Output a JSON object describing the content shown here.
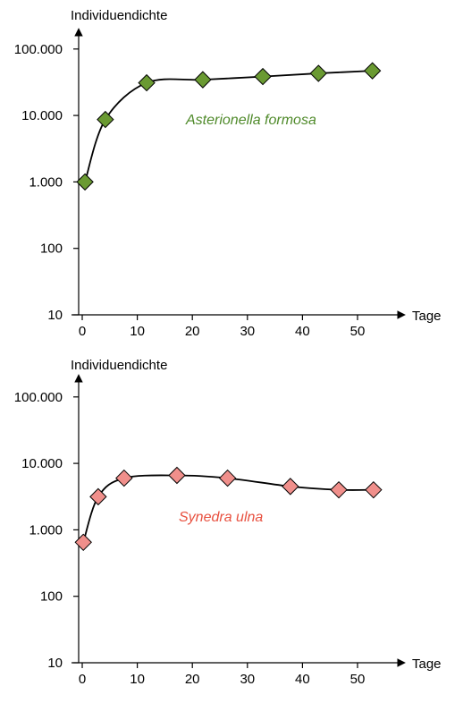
{
  "chart_data": [
    {
      "type": "scatter",
      "ylabel": "Individuendichte",
      "xlabel": "Tage",
      "y_scale": "log",
      "ylim": [
        10,
        200000
      ],
      "xlim": [
        -1,
        57
      ],
      "x_ticks": [
        0,
        10,
        20,
        30,
        40,
        50
      ],
      "x_tick_labels": [
        "0",
        "10",
        "20",
        "30",
        "40",
        "50"
      ],
      "y_ticks": [
        10,
        100,
        1000,
        10000,
        100000
      ],
      "y_tick_labels": [
        "10",
        "100",
        "1.000",
        "10.000",
        "100.000"
      ],
      "series": [
        {
          "name": "Asterionella formosa",
          "color": "#6a9a32",
          "x": [
            0.5,
            4.2,
            11.7,
            21.9,
            32.8,
            42.9,
            52.7
          ],
          "y": [
            1000,
            8700,
            31000,
            34500,
            38500,
            43000,
            47000
          ]
        }
      ],
      "grid": false
    },
    {
      "type": "scatter",
      "ylabel": "Individuendichte",
      "xlabel": "Tage",
      "y_scale": "log",
      "ylim": [
        10,
        200000
      ],
      "xlim": [
        -1,
        57
      ],
      "x_ticks": [
        0,
        10,
        20,
        30,
        40,
        50
      ],
      "x_tick_labels": [
        "0",
        "10",
        "20",
        "30",
        "40",
        "50"
      ],
      "y_ticks": [
        10,
        100,
        1000,
        10000,
        100000
      ],
      "y_tick_labels": [
        "10",
        "100",
        "1.000",
        "10.000",
        "100.000"
      ],
      "series": [
        {
          "name": "Synedra ulna",
          "color": "#f08f8b",
          "x": [
            0.2,
            2.9,
            7.6,
            17.2,
            26.4,
            37.8,
            46.6,
            52.9
          ],
          "y": [
            650,
            3150,
            6000,
            6600,
            6000,
            4500,
            4000,
            4000
          ]
        }
      ],
      "grid": false
    }
  ],
  "colors": {
    "green_text": "#4f8a2a",
    "red_text": "#e8503f"
  }
}
